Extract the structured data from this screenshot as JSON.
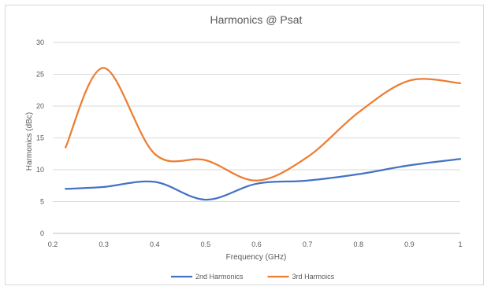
{
  "chart_data": {
    "type": "line",
    "title": "Harmonics @ Psat",
    "xlabel": "Frequency (GHz)",
    "ylabel": "Harmonics (dBc)",
    "xlim": [
      0.2,
      1
    ],
    "ylim": [
      0,
      30
    ],
    "x_ticks": [
      "0.2",
      "0.3",
      "0.4",
      "0.5",
      "0.6",
      "0.7",
      "0.8",
      "0.9",
      "1"
    ],
    "y_ticks": [
      "0",
      "5",
      "10",
      "15",
      "20",
      "25",
      "30"
    ],
    "grid": true,
    "smooth": true,
    "legend_position": "bottom",
    "series": [
      {
        "name": "2nd Harmonics",
        "color": "#4472c4",
        "x": [
          0.225,
          0.3,
          0.4,
          0.5,
          0.6,
          0.7,
          0.8,
          0.9,
          1.0
        ],
        "y": [
          7.0,
          7.3,
          8.1,
          5.3,
          7.8,
          8.3,
          9.3,
          10.7,
          11.7
        ]
      },
      {
        "name": "3rd Harmoics",
        "color": "#ed7d31",
        "x": [
          0.225,
          0.3,
          0.4,
          0.5,
          0.6,
          0.7,
          0.8,
          0.9,
          1.0
        ],
        "y": [
          13.5,
          26.0,
          12.5,
          11.5,
          8.3,
          12.0,
          19.0,
          24.0,
          23.6
        ]
      }
    ]
  }
}
